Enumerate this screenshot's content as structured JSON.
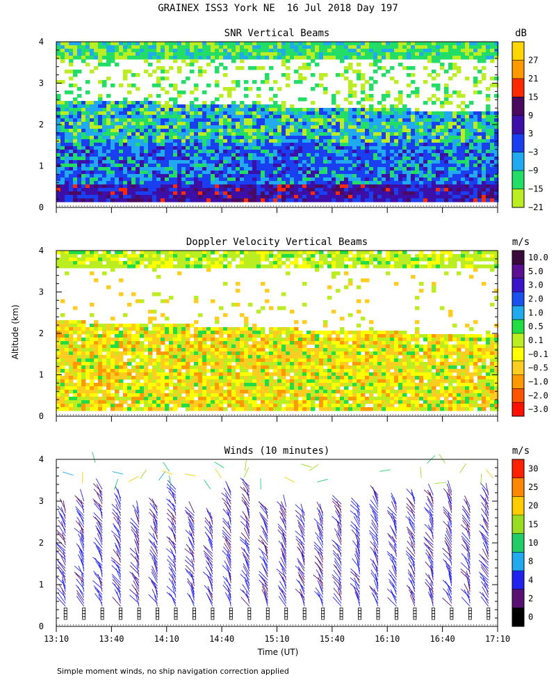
{
  "figure": {
    "title": "GRAINEX ISS3 York NE  16 Jul 2018 Day 197",
    "ylabel": "Altitude (km)",
    "xlabel": "Time (UT)",
    "footnote": "Simple moment winds, no ship navigation correction applied"
  },
  "chart_data": [
    {
      "type": "heatmap",
      "title": "SNR Vertical Beams",
      "xlabel": "",
      "ylabel": "Altitude (km)",
      "ylim": [
        0,
        4
      ],
      "yticks": [
        "0",
        "1",
        "2",
        "3",
        "4"
      ],
      "colorbar_title": "dB",
      "colorbar_ticks": [
        "27",
        "21",
        "15",
        "9",
        "3",
        "−3",
        "−9",
        "−15",
        "−21"
      ],
      "colorbar_colors": [
        "#ffd700",
        "#ff9900",
        "#ff2a00",
        "#4a0a60",
        "#3c10a8",
        "#1a3ff0",
        "#22aaf0",
        "#22dd66",
        "#bbee22"
      ],
      "field_summary": [
        {
          "alt": [
            0.1,
            0.5
          ],
          "value": 7
        },
        {
          "alt": [
            0.5,
            1.5
          ],
          "value": -1
        },
        {
          "alt": [
            1.5,
            2.3
          ],
          "value": -6
        },
        {
          "alt": [
            2.3,
            3.6
          ],
          "value": null
        },
        {
          "alt": [
            3.6,
            4.0
          ],
          "value": -11
        }
      ]
    },
    {
      "type": "heatmap",
      "title": "Doppler Velocity Vertical Beams",
      "xlabel": "",
      "ylabel": "Altitude (km)",
      "ylim": [
        0,
        4
      ],
      "yticks": [
        "0",
        "1",
        "2",
        "3",
        "4"
      ],
      "colorbar_title": "m/s",
      "colorbar_ticks": [
        "10.0",
        "5.0",
        "3.0",
        "2.0",
        "1.0",
        "0.5",
        "0.1",
        "−0.1",
        "−0.5",
        "−1.0",
        "−2.0",
        "−3.0"
      ],
      "colorbar_colors": [
        "#3a0a3a",
        "#5a1090",
        "#3a14c8",
        "#1a50ee",
        "#22aaee",
        "#22dd44",
        "#bbee22",
        "#ffff00",
        "#ffcc22",
        "#ff9900",
        "#ff5500",
        "#ff1100"
      ],
      "field_summary": [
        {
          "alt": [
            0.1,
            2.2
          ],
          "value": -0.4
        },
        {
          "alt": [
            2.2,
            3.6
          ],
          "value": null
        },
        {
          "alt": [
            3.6,
            4.0
          ],
          "value": 0.2
        }
      ]
    },
    {
      "type": "scatter",
      "title": "Winds (10 minutes)",
      "xlabel": "Time (UT)",
      "ylabel": "Altitude (km)",
      "ylim": [
        0,
        4
      ],
      "yticks": [
        "0",
        "1",
        "2",
        "3",
        "4"
      ],
      "xticks": [
        "13:10",
        "13:40",
        "14:10",
        "14:40",
        "15:10",
        "15:40",
        "16:10",
        "16:40",
        "17:10"
      ],
      "xlim": [
        "13:10",
        "17:10"
      ],
      "colorbar_title": "m/s",
      "colorbar_ticks": [
        "30",
        "25",
        "20",
        "15",
        "10",
        "8",
        "4",
        "2",
        "0"
      ],
      "colorbar_colors": [
        "#ff2200",
        "#ff8800",
        "#ffcc00",
        "#99dd22",
        "#22cc66",
        "#22aaee",
        "#2222ee",
        "#5a1070",
        "#000000"
      ],
      "profile_times": [
        "13:15",
        "13:25",
        "13:35",
        "13:45",
        "13:55",
        "14:05",
        "14:15",
        "14:25",
        "14:35",
        "14:45",
        "14:55",
        "15:05",
        "15:15",
        "15:25",
        "15:35",
        "15:45",
        "15:55",
        "16:05",
        "16:15",
        "16:25",
        "16:35",
        "16:45",
        "16:55",
        "17:05"
      ],
      "typical_profile": {
        "alt_km": [
          0.5,
          1.0,
          2.0,
          3.0
        ],
        "speed_ms": [
          4,
          5,
          5,
          5
        ],
        "direction_deg": [
          330,
          330,
          320,
          310
        ]
      }
    }
  ]
}
